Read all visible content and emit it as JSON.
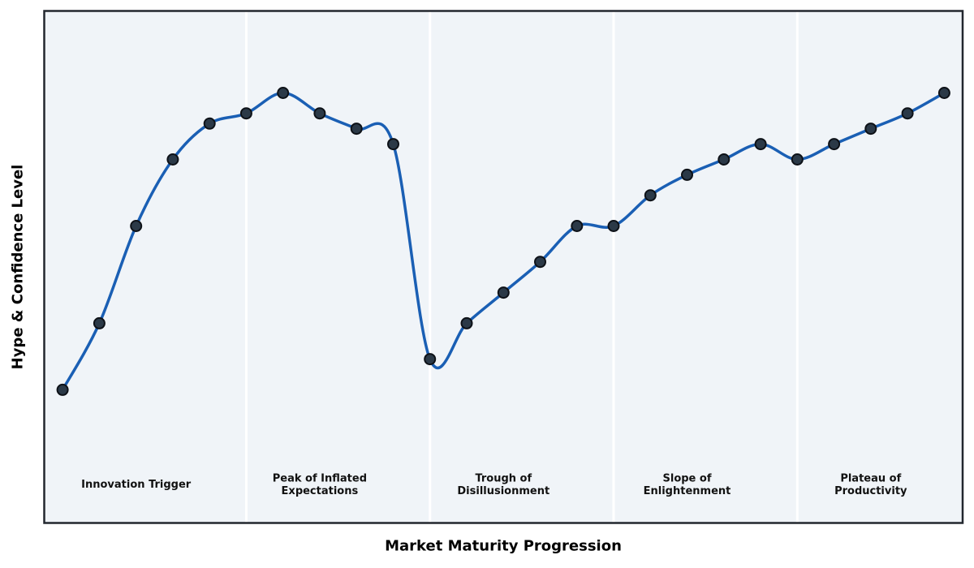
{
  "chart_data": {
    "type": "line",
    "title": "",
    "xlabel": "Market Maturity Progression",
    "ylabel": "Hype & Confidence Level",
    "x": [
      0,
      1,
      2,
      3,
      4,
      5,
      6,
      7,
      8,
      9,
      10,
      11,
      12,
      13,
      14,
      15,
      16,
      17,
      18,
      19,
      20,
      21,
      22,
      23,
      24
    ],
    "values": [
      26,
      39,
      58,
      71,
      78,
      80,
      84,
      80,
      77,
      74,
      32,
      39,
      45,
      51,
      58,
      58,
      64,
      68,
      71,
      74,
      71,
      74,
      77,
      80,
      84
    ],
    "xlim": [
      -0.5,
      24.5
    ],
    "ylim": [
      0,
      100
    ],
    "grid": false,
    "legend": false,
    "smoothing": "spline",
    "line_color": "#1a5fb4",
    "line_width": 3.5,
    "marker_color": "#2b3947",
    "marker_edge_color": "#0d1117",
    "marker_radius": 6.5,
    "plot_bg": "#f0f4f8",
    "border_color": "#22272e",
    "separator_color": "#ffffff",
    "label_color": "#111111",
    "separators_x": [
      5,
      10,
      15,
      20
    ],
    "phases": [
      {
        "label": "Innovation Trigger",
        "center_x": 2
      },
      {
        "label": "Peak of Inflated\nExpectations",
        "center_x": 7
      },
      {
        "label": "Trough of\nDisillusionment",
        "center_x": 12
      },
      {
        "label": "Slope of\nEnlightenment",
        "center_x": 17
      },
      {
        "label": "Plateau of\nProductivity",
        "center_x": 22
      }
    ]
  }
}
